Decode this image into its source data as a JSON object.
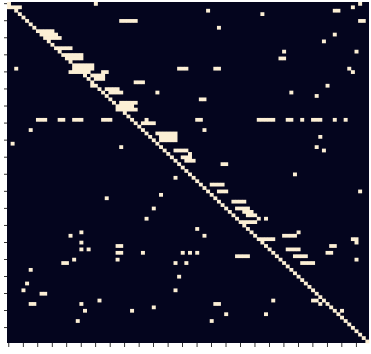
{
  "chart_data": {
    "type": "heatmap",
    "title": "",
    "xlabel": "",
    "ylabel": "",
    "n_rows": 100,
    "n_cols": 100,
    "colors": {
      "background": "#ffffff",
      "empty": "#04051e",
      "filled": "#fcefd5",
      "tick": "#000000"
    },
    "grid": false,
    "diagonal_filled": true,
    "diagonal_blocks": [
      {
        "row": 1,
        "col_start": 0,
        "col_end": 3
      },
      {
        "row": 8,
        "col_start": 8,
        "col_end": 12
      },
      {
        "row": 9,
        "col_start": 9,
        "col_end": 13
      },
      {
        "row": 10,
        "col_start": 10,
        "col_end": 14
      },
      {
        "row": 13,
        "col_start": 13,
        "col_end": 17
      },
      {
        "row": 15,
        "col_start": 15,
        "col_end": 20
      },
      {
        "row": 16,
        "col_start": 16,
        "col_end": 20
      },
      {
        "row": 18,
        "col_start": 18,
        "col_end": 23
      },
      {
        "row": 19,
        "col_start": 18,
        "col_end": 23
      },
      {
        "row": 20,
        "col_start": 17,
        "col_end": 22
      },
      {
        "row": 21,
        "col_start": 23,
        "col_end": 26
      },
      {
        "row": 22,
        "col_start": 24,
        "col_end": 26
      },
      {
        "row": 25,
        "col_start": 27,
        "col_end": 30
      },
      {
        "row": 26,
        "col_start": 28,
        "col_end": 31
      },
      {
        "row": 29,
        "col_start": 31,
        "col_end": 35
      },
      {
        "row": 30,
        "col_start": 31,
        "col_end": 34
      },
      {
        "row": 31,
        "col_start": 32,
        "col_end": 35
      },
      {
        "row": 35,
        "col_start": 37,
        "col_end": 40
      },
      {
        "row": 38,
        "col_start": 41,
        "col_end": 46
      },
      {
        "row": 39,
        "col_start": 42,
        "col_end": 46
      },
      {
        "row": 40,
        "col_start": 42,
        "col_end": 46
      },
      {
        "row": 43,
        "col_start": 46,
        "col_end": 49
      },
      {
        "row": 45,
        "col_start": 48,
        "col_end": 50
      },
      {
        "row": 46,
        "col_start": 49,
        "col_end": 51
      },
      {
        "row": 53,
        "col_start": 56,
        "col_end": 59
      },
      {
        "row": 55,
        "col_start": 58,
        "col_end": 60
      },
      {
        "row": 58,
        "col_start": 62,
        "col_end": 65
      },
      {
        "row": 60,
        "col_start": 63,
        "col_end": 66
      },
      {
        "row": 61,
        "col_start": 65,
        "col_end": 67
      },
      {
        "row": 62,
        "col_start": 66,
        "col_end": 68
      },
      {
        "row": 64,
        "col_start": 65,
        "col_end": 68
      },
      {
        "row": 72,
        "col_start": 77,
        "col_end": 80
      },
      {
        "row": 74,
        "col_start": 79,
        "col_end": 82
      },
      {
        "row": 76,
        "col_start": 81,
        "col_end": 84
      }
    ],
    "off_diagonal_cells": [
      [
        0,
        24
      ],
      [
        0,
        97
      ],
      [
        1,
        95
      ],
      [
        2,
        55
      ],
      [
        2,
        90
      ],
      [
        2,
        91
      ],
      [
        3,
        70
      ],
      [
        5,
        31
      ],
      [
        5,
        32
      ],
      [
        5,
        33
      ],
      [
        5,
        34
      ],
      [
        5,
        35
      ],
      [
        5,
        97
      ],
      [
        5,
        98
      ],
      [
        7,
        7
      ],
      [
        7,
        58
      ],
      [
        9,
        90
      ],
      [
        11,
        87
      ],
      [
        14,
        76
      ],
      [
        14,
        96
      ],
      [
        16,
        75
      ],
      [
        16,
        76
      ],
      [
        19,
        2
      ],
      [
        19,
        47
      ],
      [
        19,
        48
      ],
      [
        19,
        49
      ],
      [
        19,
        57
      ],
      [
        19,
        58
      ],
      [
        19,
        94
      ],
      [
        20,
        26
      ],
      [
        20,
        27
      ],
      [
        20,
        95
      ],
      [
        23,
        35
      ],
      [
        23,
        36
      ],
      [
        23,
        37
      ],
      [
        24,
        23
      ],
      [
        24,
        88
      ],
      [
        26,
        41
      ],
      [
        26,
        78
      ],
      [
        27,
        85
      ],
      [
        28,
        53
      ],
      [
        28,
        54
      ],
      [
        31,
        30
      ],
      [
        34,
        8
      ],
      [
        34,
        9
      ],
      [
        34,
        10
      ],
      [
        34,
        14
      ],
      [
        34,
        15
      ],
      [
        34,
        18
      ],
      [
        34,
        19
      ],
      [
        34,
        20
      ],
      [
        34,
        26
      ],
      [
        34,
        27
      ],
      [
        34,
        28
      ],
      [
        34,
        38
      ],
      [
        34,
        52
      ],
      [
        34,
        53
      ],
      [
        34,
        69
      ],
      [
        34,
        70
      ],
      [
        34,
        71
      ],
      [
        34,
        72
      ],
      [
        34,
        73
      ],
      [
        34,
        77
      ],
      [
        34,
        78
      ],
      [
        34,
        81
      ],
      [
        34,
        84
      ],
      [
        34,
        85
      ],
      [
        34,
        86
      ],
      [
        34,
        90
      ],
      [
        34,
        93
      ],
      [
        37,
        6
      ],
      [
        37,
        54
      ],
      [
        39,
        86
      ],
      [
        41,
        1
      ],
      [
        41,
        41
      ],
      [
        42,
        31
      ],
      [
        42,
        85
      ],
      [
        43,
        87
      ],
      [
        44,
        50
      ],
      [
        46,
        46
      ],
      [
        47,
        59
      ],
      [
        47,
        60
      ],
      [
        50,
        79
      ],
      [
        51,
        46
      ],
      [
        55,
        97
      ],
      [
        56,
        42
      ],
      [
        57,
        27
      ],
      [
        60,
        40
      ],
      [
        63,
        38
      ],
      [
        63,
        69
      ],
      [
        63,
        71
      ],
      [
        66,
        52
      ],
      [
        67,
        20
      ],
      [
        67,
        80
      ],
      [
        68,
        17
      ],
      [
        68,
        54
      ],
      [
        68,
        76
      ],
      [
        68,
        77
      ],
      [
        68,
        78
      ],
      [
        68,
        79
      ],
      [
        69,
        70
      ],
      [
        69,
        71
      ],
      [
        69,
        72
      ],
      [
        69,
        73
      ],
      [
        69,
        95
      ],
      [
        69,
        96
      ],
      [
        70,
        20
      ],
      [
        70,
        96
      ],
      [
        71,
        30
      ],
      [
        71,
        31
      ],
      [
        71,
        89
      ],
      [
        71,
        90
      ],
      [
        72,
        20
      ],
      [
        72,
        22
      ],
      [
        73,
        30
      ],
      [
        73,
        31
      ],
      [
        73,
        37
      ],
      [
        73,
        48
      ],
      [
        73,
        50
      ],
      [
        73,
        52
      ],
      [
        73,
        88
      ],
      [
        73,
        89
      ],
      [
        74,
        63
      ],
      [
        74,
        64
      ],
      [
        74,
        65
      ],
      [
        74,
        66
      ],
      [
        74,
        74
      ],
      [
        75,
        18
      ],
      [
        75,
        30
      ],
      [
        75,
        96
      ],
      [
        76,
        15
      ],
      [
        76,
        16
      ],
      [
        76,
        46
      ],
      [
        76,
        49
      ],
      [
        78,
        6
      ],
      [
        80,
        47
      ],
      [
        82,
        5
      ],
      [
        84,
        4
      ],
      [
        84,
        46
      ],
      [
        85,
        9
      ],
      [
        85,
        10
      ],
      [
        87,
        25
      ],
      [
        87,
        73
      ],
      [
        87,
        84
      ],
      [
        87,
        85
      ],
      [
        88,
        6
      ],
      [
        88,
        7
      ],
      [
        88,
        20
      ],
      [
        88,
        57
      ],
      [
        88,
        58
      ],
      [
        88,
        86
      ],
      [
        89,
        40
      ],
      [
        90,
        21
      ],
      [
        90,
        34
      ],
      [
        90,
        92
      ],
      [
        91,
        60
      ],
      [
        91,
        71
      ],
      [
        93,
        19
      ],
      [
        93,
        56
      ]
    ]
  }
}
